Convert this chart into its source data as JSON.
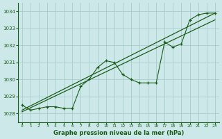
{
  "title": "Graphe pression niveau de la mer (hPa)",
  "bg_color": "#cce8e8",
  "grid_color": "#aacccc",
  "line_color": "#1a5c1a",
  "xlim": [
    -0.5,
    23.5
  ],
  "ylim": [
    1027.5,
    1034.5
  ],
  "yticks": [
    1028,
    1029,
    1030,
    1031,
    1032,
    1033,
    1034
  ],
  "xticks": [
    0,
    1,
    2,
    3,
    4,
    5,
    6,
    7,
    8,
    9,
    10,
    11,
    12,
    13,
    14,
    15,
    16,
    17,
    18,
    19,
    20,
    21,
    22,
    23
  ],
  "jagged": [
    1028.5,
    1028.2,
    1028.3,
    1028.4,
    1028.4,
    1028.3,
    1028.3,
    1029.6,
    1030.0,
    1030.7,
    1031.1,
    1031.0,
    1030.3,
    1030.0,
    1029.8,
    1029.8,
    1029.8,
    1032.2,
    1031.9,
    1032.1,
    1033.5,
    1033.8,
    1033.9,
    1033.9
  ],
  "trend1_x": [
    0,
    23
  ],
  "trend1_y": [
    1028.2,
    1033.9
  ],
  "trend2_x": [
    0,
    23
  ],
  "trend2_y": [
    1028.1,
    1033.5
  ]
}
